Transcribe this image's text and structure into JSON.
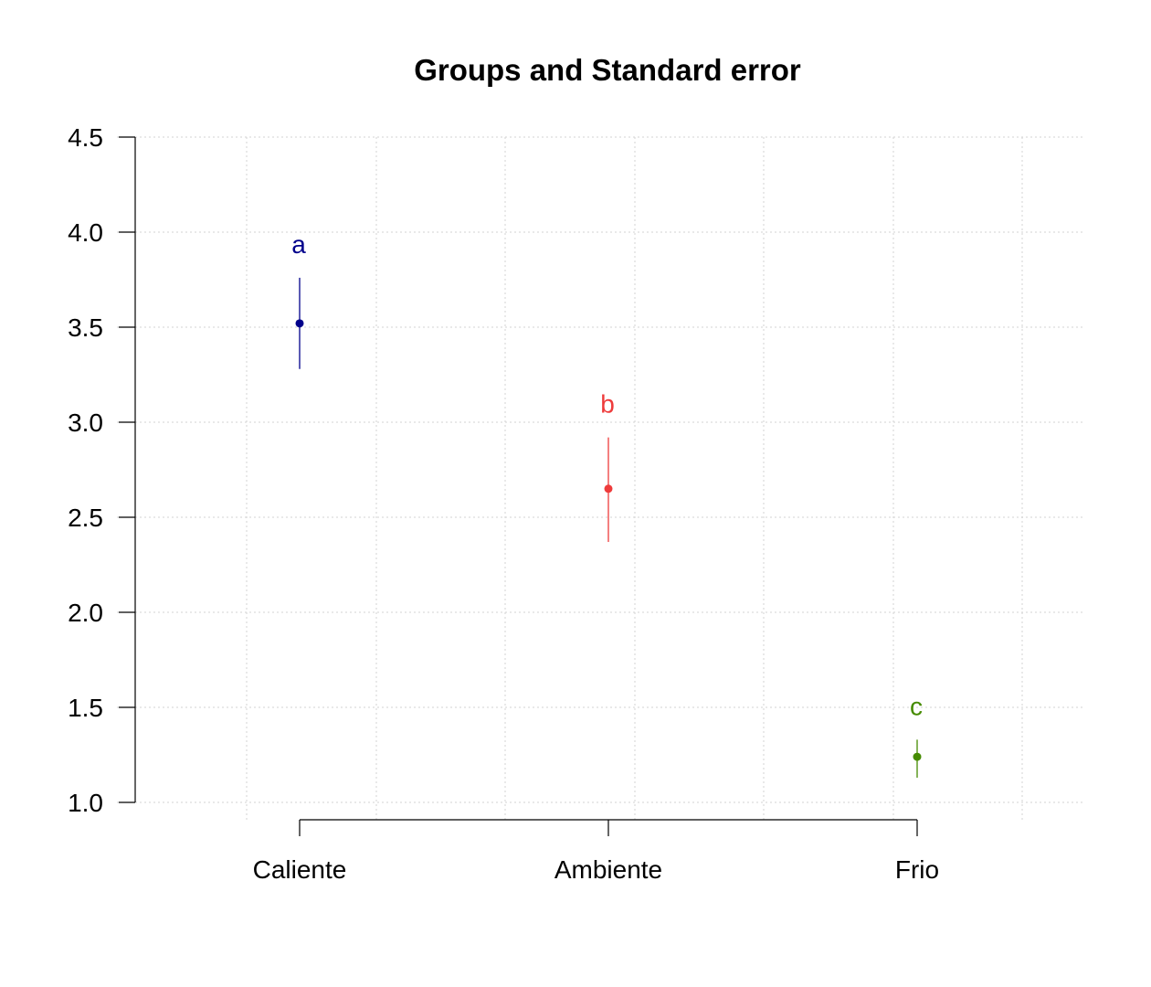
{
  "chart_data": {
    "type": "scatter",
    "title": "Groups and Standard error",
    "xlabel": "",
    "ylabel": "",
    "categories": [
      "Caliente",
      "Ambiente",
      "Frio"
    ],
    "means": [
      3.52,
      2.65,
      1.24
    ],
    "se_lower": [
      3.28,
      2.37,
      1.13
    ],
    "se_upper": [
      3.76,
      2.92,
      1.33
    ],
    "group_letters": [
      "a",
      "b",
      "c"
    ],
    "colors": [
      "#00008B",
      "#EE3B3B",
      "#458B00"
    ],
    "ylim": [
      1.0,
      4.5
    ],
    "yticks": [
      "1.0",
      "1.5",
      "2.0",
      "2.5",
      "3.0",
      "3.5",
      "4.0",
      "4.5"
    ],
    "grid": true,
    "grid_color": "#D3D3D3"
  }
}
